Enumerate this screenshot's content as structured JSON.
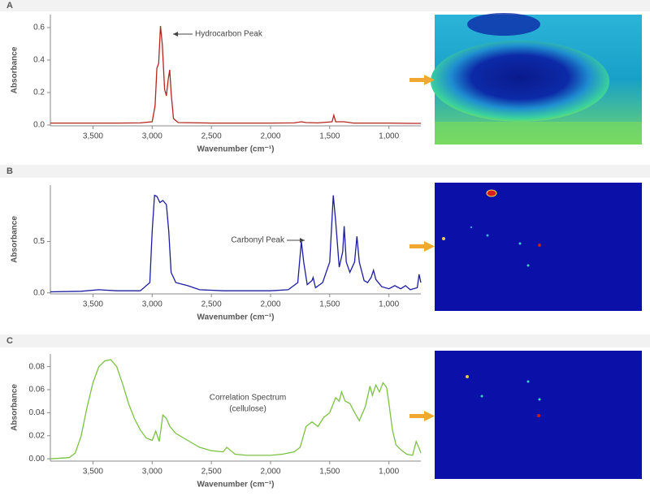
{
  "chart_data": [
    {
      "type": "line",
      "label": "A",
      "x_label": "Wavenumber (cm⁻¹)",
      "y_label": "Absorbance",
      "color": "#b3261e",
      "annotations": [
        "Hydrocarbon Peak"
      ],
      "xlim": [
        3860,
        730
      ],
      "ylim": [
        -0.005,
        0.68
      ],
      "xticks": [
        {
          "value": 3500,
          "label": "3,500"
        },
        {
          "value": 3000,
          "label": "3,000"
        },
        {
          "value": 2500,
          "label": "2,500"
        },
        {
          "value": 2000,
          "label": "2,000"
        },
        {
          "value": 1500,
          "label": "1,500"
        },
        {
          "value": 1000,
          "label": "1,000"
        }
      ],
      "yticks": [
        {
          "value": 0,
          "label": "0.0"
        },
        0.2,
        0.4,
        0.6
      ],
      "x": [
        3860,
        3600,
        3300,
        3100,
        3000,
        2975,
        2960,
        2945,
        2930,
        2915,
        2895,
        2880,
        2865,
        2852,
        2840,
        2820,
        2780,
        2500,
        2200,
        2000,
        1800,
        1740,
        1700,
        1600,
        1480,
        1465,
        1450,
        1378,
        1300,
        1000,
        800,
        730
      ],
      "values": [
        0.012,
        0.012,
        0.012,
        0.013,
        0.02,
        0.12,
        0.35,
        0.38,
        0.61,
        0.5,
        0.22,
        0.18,
        0.28,
        0.34,
        0.2,
        0.04,
        0.015,
        0.012,
        0.012,
        0.012,
        0.013,
        0.02,
        0.015,
        0.013,
        0.02,
        0.06,
        0.02,
        0.02,
        0.012,
        0.012,
        0.01,
        0.01
      ]
    },
    {
      "type": "line",
      "label": "B",
      "x_label": "Wavenumber (cm⁻¹)",
      "y_label": "Absorbance",
      "color": "#1c1ca0",
      "annotations": [
        "Carbonyl Peak"
      ],
      "xlim": [
        3860,
        730
      ],
      "ylim": [
        -0.01,
        1.05
      ],
      "xticks": [
        {
          "value": 3500,
          "label": "3,500"
        },
        {
          "value": 3000,
          "label": "3,000"
        },
        {
          "value": 2500,
          "label": "2,500"
        },
        {
          "value": 2000,
          "label": "2,000"
        },
        {
          "value": 1500,
          "label": "1,500"
        },
        {
          "value": 1000,
          "label": "1,000"
        }
      ],
      "yticks": [
        {
          "value": 0,
          "label": "0.0"
        },
        0.5
      ],
      "x": [
        3860,
        3600,
        3450,
        3300,
        3100,
        3020,
        3000,
        2980,
        2960,
        2935,
        2910,
        2880,
        2860,
        2840,
        2800,
        2700,
        2600,
        2400,
        2200,
        2000,
        1850,
        1770,
        1740,
        1720,
        1690,
        1650,
        1640,
        1620,
        1560,
        1500,
        1470,
        1450,
        1420,
        1390,
        1378,
        1360,
        1330,
        1290,
        1270,
        1250,
        1210,
        1180,
        1150,
        1130,
        1110,
        1060,
        1000,
        950,
        900,
        860,
        820,
        760,
        745,
        730
      ],
      "values": [
        0.01,
        0.015,
        0.03,
        0.02,
        0.02,
        0.1,
        0.6,
        0.95,
        0.94,
        0.88,
        0.9,
        0.86,
        0.6,
        0.2,
        0.1,
        0.07,
        0.03,
        0.02,
        0.02,
        0.02,
        0.03,
        0.1,
        0.5,
        0.3,
        0.08,
        0.12,
        0.15,
        0.05,
        0.1,
        0.3,
        0.95,
        0.7,
        0.25,
        0.4,
        0.65,
        0.3,
        0.2,
        0.3,
        0.55,
        0.3,
        0.12,
        0.1,
        0.15,
        0.22,
        0.13,
        0.06,
        0.04,
        0.07,
        0.04,
        0.07,
        0.03,
        0.05,
        0.18,
        0.1
      ]
    },
    {
      "type": "line",
      "label": "C",
      "x_label": "Wavenumber (cm⁻¹)",
      "y_label": "Absorbance",
      "color": "#7cc242",
      "annotations": [
        "Correlation Spectrum",
        "(cellulose)"
      ],
      "xlim": [
        3860,
        730
      ],
      "ylim": [
        -0.002,
        0.091
      ],
      "xticks": [
        {
          "value": 3500,
          "label": "3,500"
        },
        {
          "value": 3000,
          "label": "3,000"
        },
        {
          "value": 2500,
          "label": "2,500"
        },
        {
          "value": 2000,
          "label": "2,000"
        },
        {
          "value": 1500,
          "label": "1,500"
        },
        {
          "value": 1000,
          "label": "1,000"
        }
      ],
      "yticks": [
        {
          "value": 0,
          "label": "0.00"
        },
        0.02,
        0.04,
        0.06,
        0.08
      ],
      "x": [
        3860,
        3700,
        3650,
        3600,
        3550,
        3500,
        3450,
        3400,
        3350,
        3300,
        3250,
        3200,
        3150,
        3100,
        3050,
        3000,
        2970,
        2940,
        2910,
        2880,
        2850,
        2800,
        2700,
        2600,
        2500,
        2400,
        2370,
        2300,
        2200,
        2000,
        1900,
        1800,
        1750,
        1700,
        1650,
        1600,
        1550,
        1500,
        1450,
        1420,
        1400,
        1370,
        1330,
        1300,
        1250,
        1200,
        1160,
        1140,
        1110,
        1080,
        1050,
        1020,
        1000,
        970,
        940,
        900,
        850,
        800,
        770,
        740,
        730
      ],
      "values": [
        0,
        0.001,
        0.005,
        0.02,
        0.045,
        0.066,
        0.08,
        0.085,
        0.086,
        0.08,
        0.065,
        0.048,
        0.035,
        0.025,
        0.018,
        0.016,
        0.024,
        0.015,
        0.038,
        0.035,
        0.028,
        0.022,
        0.016,
        0.01,
        0.007,
        0.006,
        0.01,
        0.004,
        0.003,
        0.003,
        0.004,
        0.006,
        0.01,
        0.028,
        0.032,
        0.028,
        0.036,
        0.04,
        0.053,
        0.05,
        0.058,
        0.05,
        0.048,
        0.042,
        0.033,
        0.045,
        0.063,
        0.055,
        0.064,
        0.058,
        0.066,
        0.062,
        0.048,
        0.025,
        0.012,
        0.008,
        0.004,
        0.003,
        0.015,
        0.008,
        0.005
      ]
    }
  ]
}
